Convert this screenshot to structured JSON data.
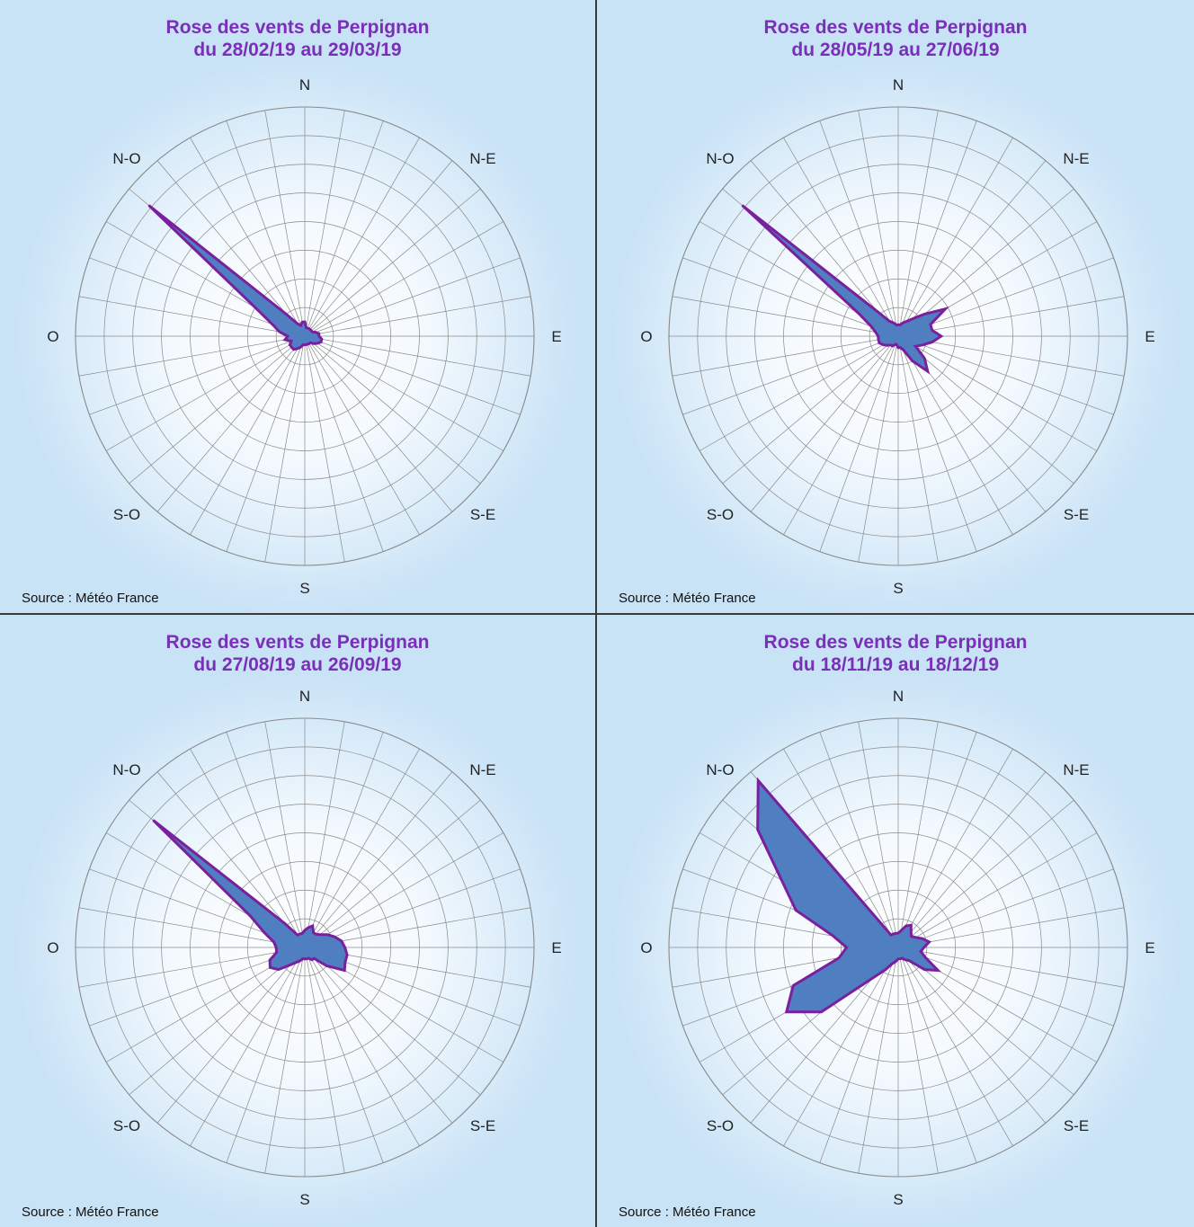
{
  "chart_data": [
    {
      "type": "radar",
      "title": "Rose des vents de Perpignan\ndu 28/02/19 au 29/03/19",
      "source": "Source : Météo France",
      "direction_labels": [
        "N",
        "N-E",
        "E",
        "S-E",
        "S",
        "S-O",
        "O",
        "N-O"
      ],
      "directions_deg": [
        0,
        10,
        20,
        30,
        40,
        50,
        60,
        70,
        80,
        90,
        100,
        110,
        120,
        130,
        140,
        150,
        160,
        170,
        180,
        190,
        200,
        210,
        220,
        230,
        240,
        250,
        260,
        270,
        280,
        290,
        300,
        310,
        320,
        330,
        340,
        350
      ],
      "values": [
        0.5,
        0.3,
        0.3,
        0.3,
        0.3,
        0.3,
        0.3,
        0.4,
        0.5,
        0.5,
        0.6,
        0.6,
        0.5,
        0.4,
        0.3,
        0.3,
        0.3,
        0.3,
        0.3,
        0.3,
        0.4,
        0.5,
        0.6,
        0.6,
        0.6,
        0.5,
        0.7,
        0.6,
        0.9,
        1.2,
        2.0,
        7.1,
        1.0,
        0.5,
        0.4,
        0.5
      ],
      "rmax": 8,
      "grid": true
    },
    {
      "type": "radar",
      "title": "Rose des vents de Perpignan\ndu 28/05/19 au 27/06/19",
      "source": "Source : Météo France",
      "direction_labels": [
        "N",
        "N-E",
        "E",
        "S-E",
        "S",
        "S-O",
        "O",
        "N-O"
      ],
      "directions_deg": [
        0,
        10,
        20,
        30,
        40,
        50,
        60,
        70,
        80,
        90,
        100,
        110,
        120,
        130,
        140,
        150,
        160,
        170,
        180,
        190,
        200,
        210,
        220,
        230,
        240,
        250,
        260,
        270,
        280,
        290,
        300,
        310,
        320,
        330,
        340,
        350
      ],
      "values": [
        0.4,
        0.4,
        0.5,
        0.6,
        0.8,
        1.2,
        1.9,
        1.2,
        1.2,
        1.5,
        1.2,
        0.9,
        0.7,
        1.2,
        1.6,
        1.0,
        0.5,
        0.4,
        0.4,
        0.3,
        0.3,
        0.4,
        0.4,
        0.5,
        0.6,
        0.7,
        0.7,
        0.7,
        0.8,
        1.0,
        1.6,
        7.1,
        1.1,
        0.6,
        0.5,
        0.4
      ],
      "rmax": 8,
      "grid": true
    },
    {
      "type": "radar",
      "title": "Rose des vents de Perpignan\ndu 27/08/19 au 26/09/19",
      "source": "Source : Météo France",
      "direction_labels": [
        "N",
        "N-E",
        "E",
        "S-E",
        "S",
        "S-O",
        "O",
        "N-O"
      ],
      "directions_deg": [
        0,
        10,
        20,
        30,
        40,
        50,
        60,
        70,
        80,
        90,
        100,
        110,
        120,
        130,
        140,
        150,
        160,
        170,
        180,
        190,
        200,
        210,
        220,
        230,
        240,
        250,
        260,
        270,
        280,
        290,
        300,
        310,
        320,
        330,
        340,
        350
      ],
      "values": [
        0.6,
        0.7,
        0.8,
        0.6,
        0.6,
        0.7,
        0.9,
        1.1,
        1.3,
        1.4,
        1.5,
        1.5,
        1.6,
        1.0,
        0.5,
        0.5,
        0.4,
        0.4,
        0.4,
        0.4,
        0.5,
        0.6,
        0.8,
        1.2,
        1.4,
        1.3,
        1.0,
        1.0,
        1.1,
        1.5,
        2.2,
        6.9,
        1.1,
        0.5,
        0.5,
        0.5
      ],
      "rmax": 8,
      "grid": true
    },
    {
      "type": "radar",
      "title": "Rose des vents de Perpignan\ndu 18/11/19 au 18/12/19",
      "source": "Source : Météo France",
      "direction_labels": [
        "N",
        "N-E",
        "E",
        "S-E",
        "S",
        "S-O",
        "O",
        "N-O"
      ],
      "directions_deg": [
        0,
        10,
        20,
        30,
        40,
        50,
        60,
        70,
        80,
        90,
        100,
        110,
        120,
        130,
        140,
        150,
        160,
        170,
        180,
        190,
        200,
        210,
        220,
        230,
        240,
        250,
        260,
        270,
        280,
        290,
        300,
        310,
        320,
        330,
        340,
        350
      ],
      "values": [
        0.5,
        0.6,
        0.8,
        0.9,
        0.7,
        0.6,
        0.7,
        0.9,
        1.1,
        0.9,
        0.8,
        1.0,
        1.6,
        1.2,
        0.6,
        0.5,
        0.4,
        0.4,
        0.4,
        0.5,
        0.6,
        0.9,
        1.4,
        3.5,
        4.5,
        3.9,
        2.1,
        1.8,
        2.3,
        3.8,
        4.7,
        6.4,
        7.6,
        0.5,
        0.5,
        0.5
      ],
      "rmax": 8,
      "grid": true
    }
  ],
  "style": {
    "title_color": "#7a2fb8",
    "fill_color": "#4f7fc0",
    "stroke_color": "#7a1f9e",
    "grid_color": "#8a8a8a",
    "background_color": "#cfe5f7"
  }
}
